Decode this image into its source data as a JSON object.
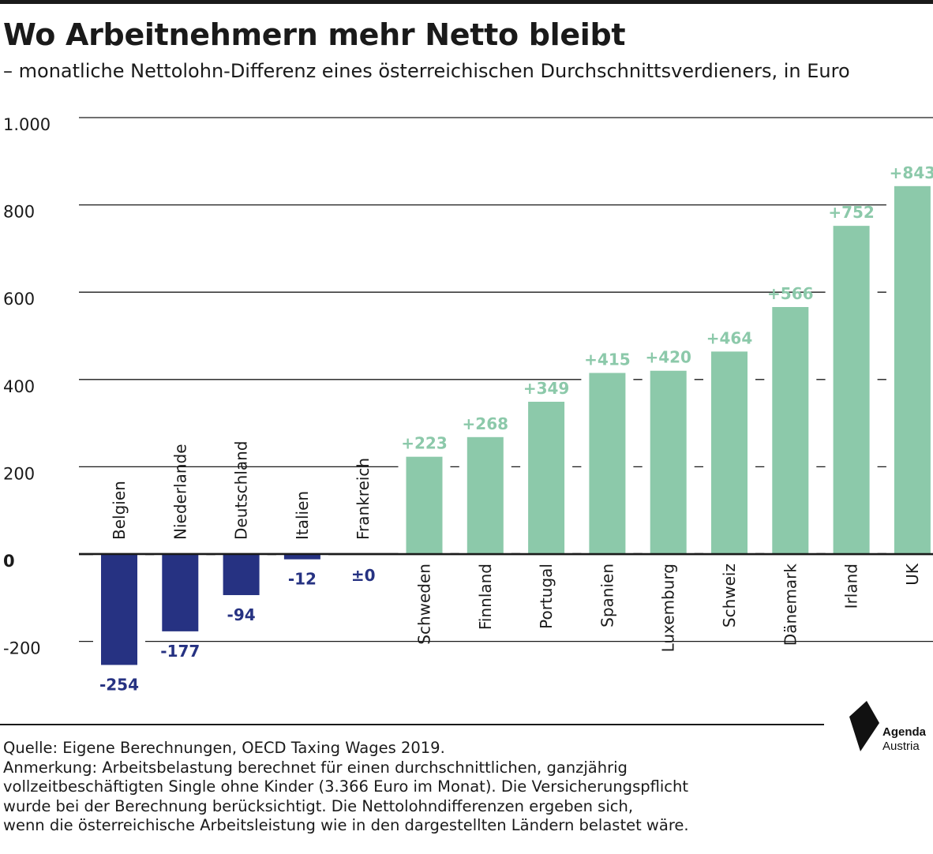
{
  "title": "Wo Arbeitnehmern mehr Netto bleibt",
  "subtitle": "– monatliche Nettolohn-Differenz eines österreichischen Durchschnittsverdieners, in Euro",
  "chart_data": {
    "type": "bar",
    "categories": [
      "Belgien",
      "Niederlande",
      "Deutschland",
      "Italien",
      "Frankreich",
      "Schweden",
      "Finnland",
      "Portugal",
      "Spanien",
      "Luxemburg",
      "Schweiz",
      "Dänemark",
      "Irland",
      "UK"
    ],
    "values": [
      -254,
      -177,
      -94,
      -12,
      0,
      223,
      268,
      349,
      415,
      420,
      464,
      566,
      752,
      843
    ],
    "value_labels": [
      "-254",
      "-177",
      "-94",
      "-12",
      "±0",
      "+223",
      "+268",
      "+349",
      "+415",
      "+420",
      "+464",
      "+566",
      "+752",
      "+843"
    ],
    "y_ticks": [
      1000,
      800,
      600,
      400,
      200,
      0,
      -200
    ],
    "y_tick_labels": [
      "1.000",
      "800",
      "600",
      "400",
      "200",
      "0",
      "-200"
    ],
    "ylim": [
      -254,
      1000
    ],
    "grid": true,
    "colors": {
      "negative": "#263282",
      "positive": "#8cc9aa"
    }
  },
  "footer": {
    "source": "Quelle: Eigene Berechnungen, OECD Taxing Wages 2019.",
    "note_lines": [
      "Anmerkung: Arbeitsbelastung berechnet für einen durchschnittlichen, ganzjährig",
      "vollzeitbeschäftigten Single ohne Kinder (3.366 Euro im Monat). Die Versicherungspflicht",
      "wurde bei der Berechnung berücksichtigt. Die Nettolohndifferenzen ergeben sich,",
      "wenn die österreichische Arbeitsleistung wie in den dargestellten Ländern belastet wäre."
    ]
  },
  "logo": {
    "line1": "Agenda",
    "line2": "Austria"
  }
}
